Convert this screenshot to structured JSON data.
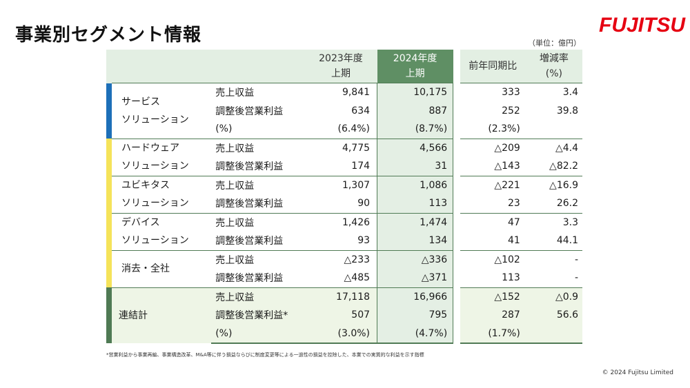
{
  "title": "事業別セグメント情報",
  "logo": "FUJITSU",
  "unit": "（単位：億円）",
  "header": {
    "fy2023": "2023年度",
    "fy2023_half": "上期",
    "fy2024": "2024年度",
    "fy2024_half": "上期",
    "yoy": "前年同期比",
    "rate": "増減率",
    "rate_unit": "(%)"
  },
  "segments": [
    {
      "name1": "サービス",
      "name2": "ソリューション",
      "color": "#1d6fb8",
      "rows": [
        {
          "metric": "売上収益",
          "v2023": "9,841",
          "v2024": "10,175",
          "yoy": "333",
          "rate": "3.4"
        },
        {
          "metric": "調整後営業利益",
          "v2023": "634",
          "v2024": "887",
          "yoy": "252",
          "rate": "39.8"
        },
        {
          "metric": "(%)",
          "v2023": "(6.4%)",
          "v2024": "(8.7%)",
          "yoy": "(2.3%)",
          "rate": ""
        }
      ]
    },
    {
      "name1": "ハードウェア",
      "name2": "ソリューション",
      "color": "#f5e35a",
      "rows": [
        {
          "metric": "売上収益",
          "v2023": "4,775",
          "v2024": "4,566",
          "yoy": "△209",
          "rate": "△4.4"
        },
        {
          "metric": "調整後営業利益",
          "v2023": "174",
          "v2024": "31",
          "yoy": "△143",
          "rate": "△82.2"
        }
      ]
    },
    {
      "name1": "ユビキタス",
      "name2": "ソリューション",
      "color": "#f5e35a",
      "rows": [
        {
          "metric": "売上収益",
          "v2023": "1,307",
          "v2024": "1,086",
          "yoy": "△221",
          "rate": "△16.9"
        },
        {
          "metric": "調整後営業利益",
          "v2023": "90",
          "v2024": "113",
          "yoy": "23",
          "rate": "26.2"
        }
      ]
    },
    {
      "name1": "デバイス",
      "name2": "ソリューション",
      "color": "#f5e35a",
      "rows": [
        {
          "metric": "売上収益",
          "v2023": "1,426",
          "v2024": "1,474",
          "yoy": "47",
          "rate": "3.3"
        },
        {
          "metric": "調整後営業利益",
          "v2023": "93",
          "v2024": "134",
          "yoy": "41",
          "rate": "44.1"
        }
      ]
    },
    {
      "name1": "消去・全社",
      "name2": "",
      "color": "#f5e35a",
      "rows": [
        {
          "metric": "売上収益",
          "v2023": "△233",
          "v2024": "△336",
          "yoy": "△102",
          "rate": "-"
        },
        {
          "metric": "調整後営業利益",
          "v2023": "△485",
          "v2024": "△371",
          "yoy": "113",
          "rate": "-"
        }
      ]
    }
  ],
  "total": {
    "name": "連結計",
    "color": "#4f7a54",
    "rows": [
      {
        "metric": "売上収益",
        "v2023": "17,118",
        "v2024": "16,966",
        "yoy": "△152",
        "rate": "△0.9"
      },
      {
        "metric": "調整後営業利益*",
        "v2023": "507",
        "v2024": "795",
        "yoy": "287",
        "rate": "56.6"
      },
      {
        "metric": "(%)",
        "v2023": "(3.0%)",
        "v2024": "(4.7%)",
        "yoy": "(1.7%)",
        "rate": ""
      }
    ]
  },
  "footnote": "*営業利益から事業再編、事業構造改革、M&A等に伴う損益ならびに制度変更等による一過性の損益を控除した、本業での実質的な利益を示す指標",
  "copyright": "© 2024 Fujitsu Limited"
}
